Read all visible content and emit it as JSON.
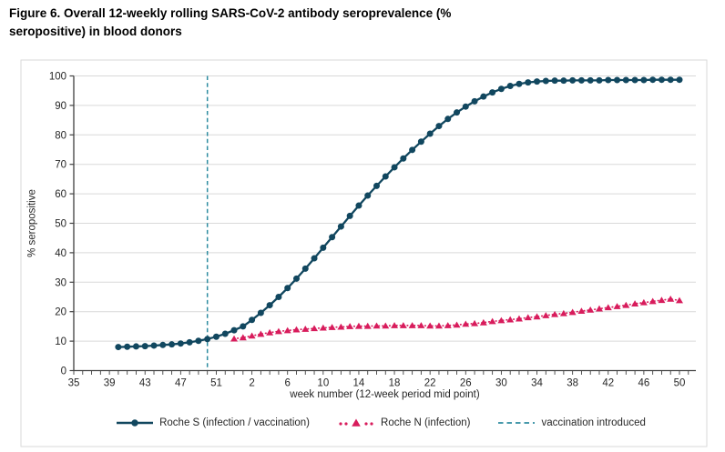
{
  "figure_title": "Figure 6. Overall 12-weekly rolling SARS-CoV-2 antibody seroprevalence (% seropositive) in blood donors",
  "colors": {
    "roche_s": "#11475f",
    "roche_n": "#d81c5c",
    "vaccination": "#2e8ca0",
    "gridline": "#d9d9d9",
    "axis": "#404040",
    "text": "#262626",
    "chart_border": "#d9d9d9",
    "background": "#ffffff"
  },
  "chart_data": {
    "type": "line",
    "title": "",
    "xlabel": "week number (12-week period mid point)",
    "ylabel": "% seropositive",
    "ylim": [
      0,
      100
    ],
    "y_ticks": [
      0,
      10,
      20,
      30,
      40,
      50,
      60,
      70,
      80,
      90,
      100
    ],
    "grid": "horizontal-only",
    "legend_position": "bottom",
    "x_axis_unit": "ISO week number; pos = weeks elapsed since week 35 of 2020 (2020 has 53 ISO weeks, then 2021 weeks 1-50)",
    "x_pos_range": [
      0,
      69.8
    ],
    "minor_tick_every": 1,
    "x_ticks": [
      {
        "pos": 0,
        "label": "35"
      },
      {
        "pos": 4,
        "label": "39"
      },
      {
        "pos": 8,
        "label": "43"
      },
      {
        "pos": 12,
        "label": "47"
      },
      {
        "pos": 16,
        "label": "51"
      },
      {
        "pos": 20,
        "label": "2"
      },
      {
        "pos": 24,
        "label": "6"
      },
      {
        "pos": 28,
        "label": "10"
      },
      {
        "pos": 32,
        "label": "14"
      },
      {
        "pos": 36,
        "label": "18"
      },
      {
        "pos": 40,
        "label": "22"
      },
      {
        "pos": 44,
        "label": "26"
      },
      {
        "pos": 48,
        "label": "30"
      },
      {
        "pos": 52,
        "label": "34"
      },
      {
        "pos": 56,
        "label": "38"
      },
      {
        "pos": 60,
        "label": "42"
      },
      {
        "pos": 64,
        "label": "46"
      },
      {
        "pos": 68,
        "label": "50"
      }
    ],
    "series": [
      {
        "name": "Roche S (infection / vaccination)",
        "marker": "circle",
        "line_style": "solid",
        "color_key": "roche_s",
        "start_pos": 5,
        "start_week": "week 40, 2020",
        "end_week": "week 50, 2021",
        "values": [
          8.0,
          8.1,
          8.2,
          8.3,
          8.5,
          8.7,
          8.9,
          9.2,
          9.6,
          10.1,
          10.7,
          11.5,
          12.5,
          13.7,
          15.0,
          17.2,
          19.6,
          22.2,
          25.0,
          28.0,
          31.2,
          34.6,
          38.1,
          41.7,
          45.3,
          48.9,
          52.5,
          56.0,
          59.4,
          62.7,
          65.9,
          69.0,
          72.0,
          74.9,
          77.7,
          80.4,
          83.0,
          85.4,
          87.6,
          89.6,
          91.4,
          93.0,
          94.4,
          95.6,
          96.6,
          97.3,
          97.8,
          98.1,
          98.3,
          98.4,
          98.4,
          98.5,
          98.5,
          98.5,
          98.5,
          98.6,
          98.6,
          98.6,
          98.6,
          98.6,
          98.7,
          98.7,
          98.7,
          98.7
        ]
      },
      {
        "name": "Roche N (infection)",
        "marker": "triangle",
        "line_style": "dotted",
        "color_key": "roche_n",
        "start_pos": 18,
        "start_week": "week 53, 2020",
        "end_week": "week 50, 2021",
        "values": [
          10.8,
          11.2,
          11.8,
          12.4,
          12.9,
          13.3,
          13.6,
          13.9,
          14.1,
          14.3,
          14.5,
          14.7,
          14.8,
          15.0,
          15.1,
          15.1,
          15.2,
          15.2,
          15.3,
          15.3,
          15.3,
          15.3,
          15.2,
          15.2,
          15.3,
          15.5,
          15.8,
          16.0,
          16.3,
          16.7,
          17.0,
          17.3,
          17.6,
          18.0,
          18.3,
          18.7,
          19.1,
          19.4,
          19.8,
          20.2,
          20.6,
          21.0,
          21.4,
          21.8,
          22.2,
          22.7,
          23.1,
          23.5,
          23.9,
          24.3,
          23.8
        ]
      }
    ],
    "vline": {
      "label": "vaccination introduced",
      "pos": 15,
      "week": "week 50, 2020",
      "style": "dashed",
      "color_key": "vaccination"
    }
  },
  "legend": {
    "roche_s_label": "Roche S (infection / vaccination)",
    "roche_n_label": "Roche N (infection)",
    "vaccination_label": "vaccination introduced"
  }
}
